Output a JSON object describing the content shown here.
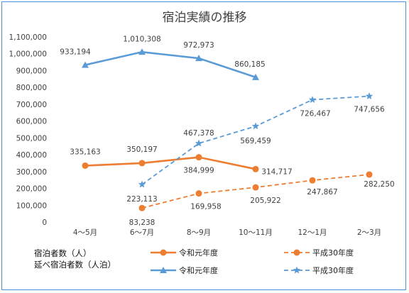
{
  "chart_data": {
    "type": "line",
    "title": "宿泊実績の推移",
    "categories": [
      "4～5月",
      "6～7月",
      "8～9月",
      "10～11月",
      "12～1月",
      "2～3月"
    ],
    "ylim": [
      0,
      1100000
    ],
    "ytick_step": 100000,
    "grid": false,
    "legend_position": "bottom",
    "legend_row_labels": [
      "宿泊者数（人）",
      "延べ宿泊者数（人泊）"
    ],
    "series": [
      {
        "name": "令和元年度",
        "metric": "宿泊者数（人）",
        "color": "#ed7d31",
        "dash": false,
        "marker": "circle",
        "values": [
          335163,
          350197,
          384999,
          314717,
          null,
          null
        ],
        "labels": [
          "335,163",
          "350,197",
          "384,999",
          "314,717",
          null,
          null
        ]
      },
      {
        "name": "平成30年度",
        "metric": "宿泊者数（人）",
        "color": "#ed7d31",
        "dash": true,
        "marker": "circle",
        "values": [
          null,
          83238,
          169958,
          205922,
          247867,
          282250
        ],
        "labels": [
          null,
          "83,238",
          "169,958",
          "205,922",
          "247,867",
          "282,250"
        ]
      },
      {
        "name": "令和元年度",
        "metric": "延べ宿泊者数（人泊）",
        "color": "#5b9bd5",
        "dash": false,
        "marker": "triangle",
        "values": [
          933194,
          1010308,
          972973,
          860185,
          null,
          null
        ],
        "labels": [
          "933,194",
          "1,010,308",
          "972,973",
          "860,185",
          null,
          null
        ]
      },
      {
        "name": "平成30年度",
        "metric": "延べ宿泊者数（人泊）",
        "color": "#5b9bd5",
        "dash": true,
        "marker": "star",
        "values": [
          null,
          223113,
          467378,
          569459,
          726467,
          747656
        ],
        "labels": [
          null,
          "223,113",
          "467,378",
          "569,459",
          "726,467",
          "747,656"
        ]
      }
    ]
  }
}
